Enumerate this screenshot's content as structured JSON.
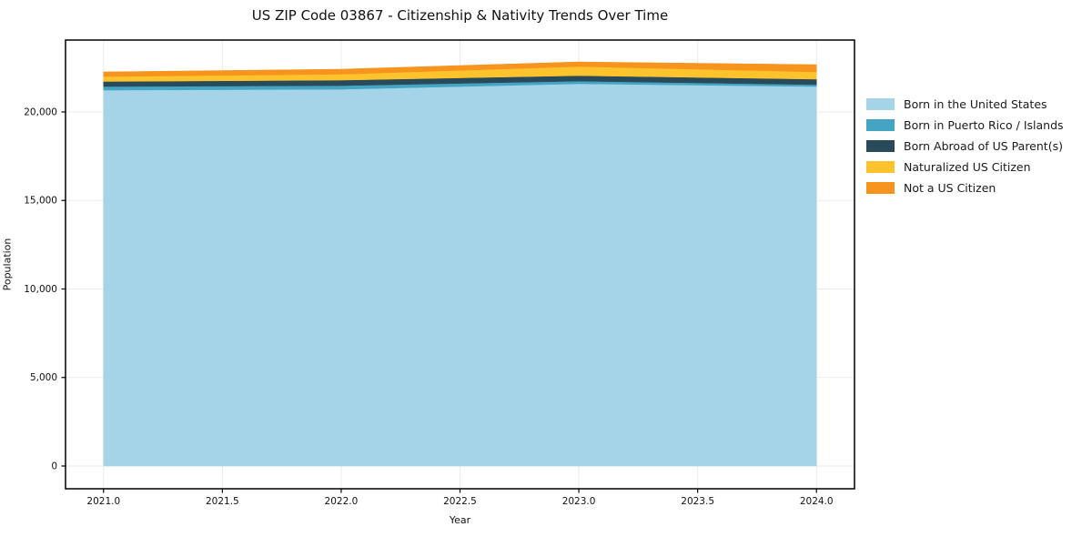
{
  "figure": {
    "title": "US ZIP Code 03867 - Citizenship & Nativity Trends Over Time"
  },
  "chart_data": {
    "type": "area",
    "stacked": true,
    "title": "US ZIP Code 03867 - Citizenship & Nativity Trends Over Time",
    "xlabel": "Year",
    "ylabel": "Population",
    "x": [
      2021,
      2022,
      2023,
      2024
    ],
    "series": [
      {
        "name": "Born in the United States",
        "color": "#a5d3e8",
        "values": [
          21230,
          21280,
          21590,
          21435
        ]
      },
      {
        "name": "Born in Puerto Rico / Islands",
        "color": "#44a5c3",
        "values": [
          205,
          205,
          150,
          105
        ]
      },
      {
        "name": "Born Abroad of US Parent(s)",
        "color": "#294a5b",
        "values": [
          285,
          310,
          310,
          310
        ]
      },
      {
        "name": "Naturalized US Citizen",
        "color": "#fdc32d",
        "values": [
          280,
          335,
          515,
          410
        ]
      },
      {
        "name": "Not a US Citizen",
        "color": "#f6941e",
        "values": [
          260,
          285,
          260,
          410
        ]
      }
    ],
    "xlim": [
      2020.84,
      2024.16
    ],
    "ylim": [
      -1285,
      24060
    ],
    "xticks": {
      "values": [
        2021,
        2021.5,
        2022,
        2022.5,
        2023,
        2023.5,
        2024
      ],
      "labels": [
        "2021.0",
        "2021.5",
        "2022.0",
        "2022.5",
        "2023.0",
        "2023.5",
        "2024.0"
      ]
    },
    "yticks": {
      "values": [
        0,
        5000,
        10000,
        15000,
        20000
      ],
      "labels": [
        "0",
        "5,000",
        "10,000",
        "15,000",
        "20,000"
      ]
    },
    "grid": true,
    "grid_color": "#ebebeb",
    "axis_color": "#000000",
    "legend_position": "right-outside"
  }
}
